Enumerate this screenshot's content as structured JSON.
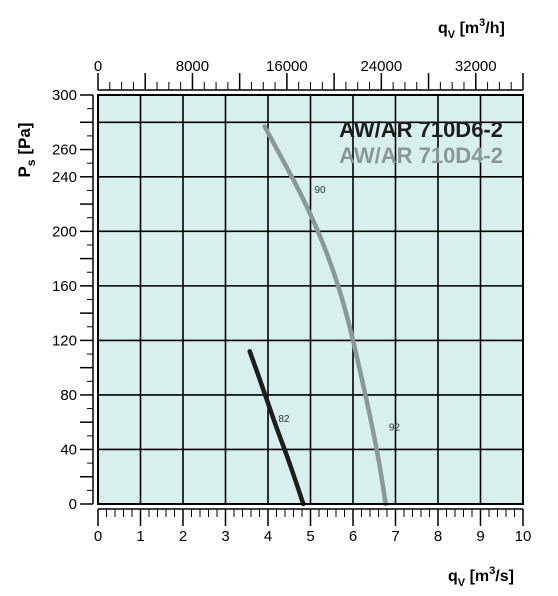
{
  "chart_data": {
    "type": "line",
    "background": "#d7efed",
    "grid": true,
    "x_axis_bottom": {
      "label_main": "q",
      "label_sub": "V",
      "label_unit_pre": "[m",
      "label_unit_sup": "3",
      "label_unit_post": "/s]",
      "min": 0,
      "max": 10,
      "ticks": [
        "0",
        "1",
        "2",
        "3",
        "4",
        "5",
        "6",
        "7",
        "8",
        "9",
        "10"
      ]
    },
    "x_axis_top": {
      "label_main": "q",
      "label_sub": "V",
      "label_unit_pre": "[m",
      "label_unit_sup": "3",
      "label_unit_post": "/h]",
      "min": 0,
      "max": 36000,
      "ticks": [
        "0",
        "8000",
        "16000",
        "24000",
        "32000"
      ],
      "tick_values": [
        0,
        8000,
        16000,
        24000,
        32000
      ]
    },
    "y_axis": {
      "label_main": "P",
      "label_sub": "s",
      "label_unit": "[Pa]",
      "min": 0,
      "max": 300,
      "ticks": [
        "0",
        "40",
        "80",
        "120",
        "160",
        "200",
        "240",
        "260",
        "300"
      ],
      "tick_values": [
        0,
        40,
        80,
        120,
        160,
        200,
        240,
        260,
        300
      ]
    },
    "legend_position": "top-right",
    "series": [
      {
        "name": "AW/AR 710D6-2",
        "color": "#1e1e1e",
        "points": [
          [
            3.57,
            112
          ],
          [
            3.8,
            92
          ],
          [
            4.0,
            74
          ],
          [
            4.2,
            56
          ],
          [
            4.45,
            35
          ],
          [
            4.65,
            17
          ],
          [
            4.83,
            0
          ]
        ]
      },
      {
        "name": "AW/AR 710D4-2",
        "color": "#8a9898",
        "points": [
          [
            3.92,
            277
          ],
          [
            4.3,
            255
          ],
          [
            4.7,
            232
          ],
          [
            5.1,
            206
          ],
          [
            5.5,
            175
          ],
          [
            5.85,
            140
          ],
          [
            6.15,
            100
          ],
          [
            6.42,
            62
          ],
          [
            6.62,
            30
          ],
          [
            6.77,
            0
          ]
        ]
      }
    ],
    "annotations": [
      {
        "text": "82",
        "x": 4.15,
        "y": 63
      },
      {
        "text": "90",
        "x": 5.0,
        "y": 231
      },
      {
        "text": "92",
        "x": 6.75,
        "y": 57
      }
    ]
  }
}
